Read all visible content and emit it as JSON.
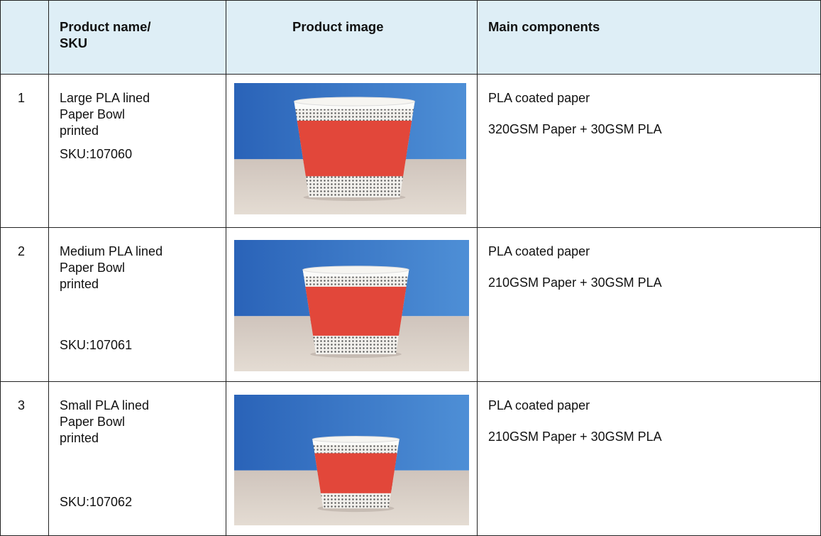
{
  "table": {
    "header": [
      "Product name/\nSKU",
      "Product image",
      "Main components"
    ],
    "rows": [
      {
        "number": "1",
        "name": "Large PLA lined\nPaper Bowl\nprinted",
        "sku": "SKU:107060",
        "components": [
          "PLA coated paper",
          "320GSM Paper + 30GSM PLA"
        ]
      },
      {
        "number": "2",
        "name": "Medium PLA lined\nPaper Bowl\nprinted",
        "sku": "SKU:107061",
        "components": [
          "PLA coated paper",
          "210GSM Paper + 30GSM PLA"
        ]
      },
      {
        "number": "3",
        "name": "Small PLA lined\nPaper Bowl\nprinted",
        "sku": "SKU:107062",
        "components": [
          "PLA coated paper",
          "210GSM Paper + 30GSM PLA"
        ]
      }
    ]
  }
}
